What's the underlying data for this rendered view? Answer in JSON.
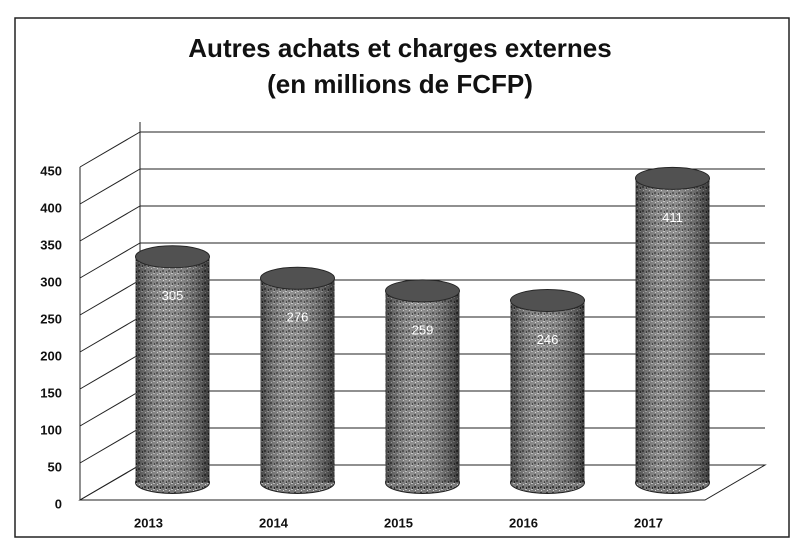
{
  "chart_data": {
    "type": "bar",
    "title": "Autres achats et charges externes",
    "subtitle": "(en millions de FCFP)",
    "categories": [
      "2013",
      "2014",
      "2015",
      "2016",
      "2017"
    ],
    "values": [
      305,
      276,
      259,
      246,
      411
    ],
    "color": "#6e6e6e",
    "ylim": [
      0,
      450
    ],
    "yticks": [
      0,
      50,
      100,
      150,
      200,
      250,
      300,
      350,
      400,
      450
    ],
    "grid": true
  }
}
